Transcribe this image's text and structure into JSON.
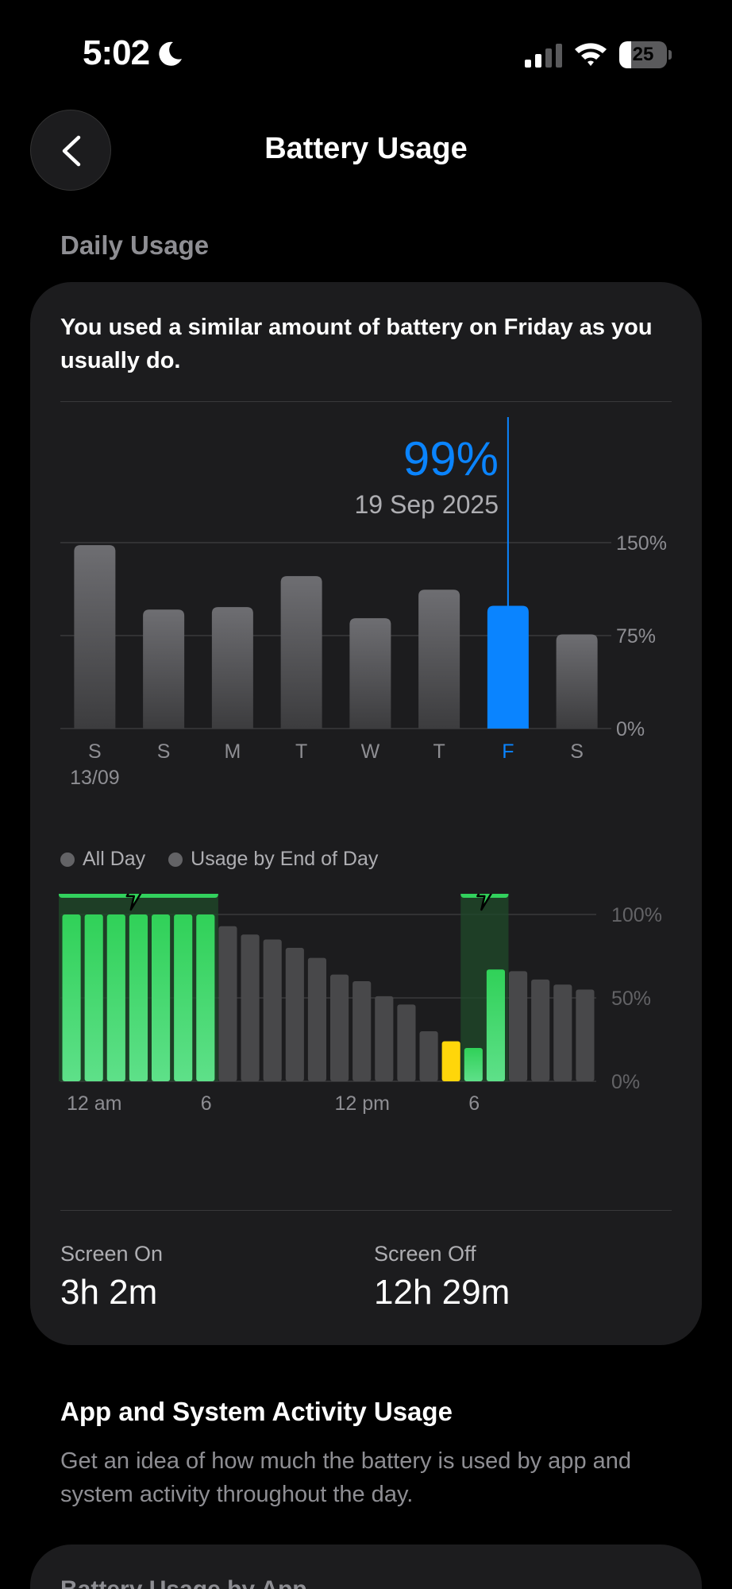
{
  "status_bar": {
    "time": "5:02",
    "battery_percent": 25,
    "battery_label": "25",
    "icons": [
      "moon-icon",
      "cellular-signal-icon",
      "wifi-icon",
      "battery-icon"
    ]
  },
  "nav": {
    "title": "Battery Usage",
    "back_icon": "chevron-left-icon"
  },
  "daily_usage": {
    "header": "Daily Usage",
    "summary": "You used a similar amount of battery on Friday as you usually do.",
    "selected_value": "99%",
    "selected_date": "19 Sep 2025",
    "legend": [
      "All Day",
      "Usage by End of Day"
    ]
  },
  "chart_data": [
    {
      "type": "bar",
      "categories": [
        "S",
        "S",
        "M",
        "T",
        "W",
        "T",
        "F",
        "S"
      ],
      "sub_labels": [
        "13/09",
        "",
        "",
        "",
        "",
        "",
        "",
        ""
      ],
      "values": [
        148,
        96,
        98,
        123,
        89,
        112,
        99,
        76
      ],
      "selected_index": 6,
      "ylim": [
        0,
        150
      ],
      "yticks": [
        "150%",
        "75%",
        "0%"
      ],
      "ytick_values": [
        150,
        75,
        0
      ],
      "colors": {
        "bar": "#5b5b5e",
        "selected": "#0a84ff",
        "grid": "#3a3a3c"
      }
    },
    {
      "type": "bar",
      "xticks": [
        "12 am",
        "6",
        "12 pm",
        "6"
      ],
      "xtick_hours": [
        0,
        6,
        12,
        18
      ],
      "values": [
        100,
        100,
        100,
        100,
        100,
        100,
        100,
        93,
        88,
        85,
        80,
        74,
        64,
        60,
        51,
        46,
        30,
        24,
        20,
        67,
        66,
        61,
        58,
        55
      ],
      "bar_colors": [
        "green",
        "green",
        "green",
        "green",
        "green",
        "green",
        "green",
        "gray",
        "gray",
        "gray",
        "gray",
        "gray",
        "gray",
        "gray",
        "gray",
        "gray",
        "gray",
        "yellow",
        "green",
        "green",
        "gray",
        "gray",
        "gray",
        "gray"
      ],
      "charging_ranges": [
        [
          0,
          6
        ],
        [
          18,
          19
        ]
      ],
      "ylim": [
        0,
        100
      ],
      "yticks": [
        "100%",
        "50%",
        "0%"
      ],
      "ytick_values": [
        100,
        50,
        0
      ],
      "colors": {
        "green": "#32d15d",
        "gray": "#48484a",
        "yellow": "#ffd60a",
        "charging_band": "#1f4a2a",
        "charging_bar": "#32d15d"
      }
    }
  ],
  "screen_stats": {
    "on_label": "Screen On",
    "on_value": "3h 2m",
    "off_label": "Screen Off",
    "off_value": "12h 29m"
  },
  "activity": {
    "title": "App and System Activity Usage",
    "description": "Get an idea of how much the battery is used by app and system activity throughout the day."
  },
  "by_app": {
    "title": "Battery Usage by App"
  }
}
